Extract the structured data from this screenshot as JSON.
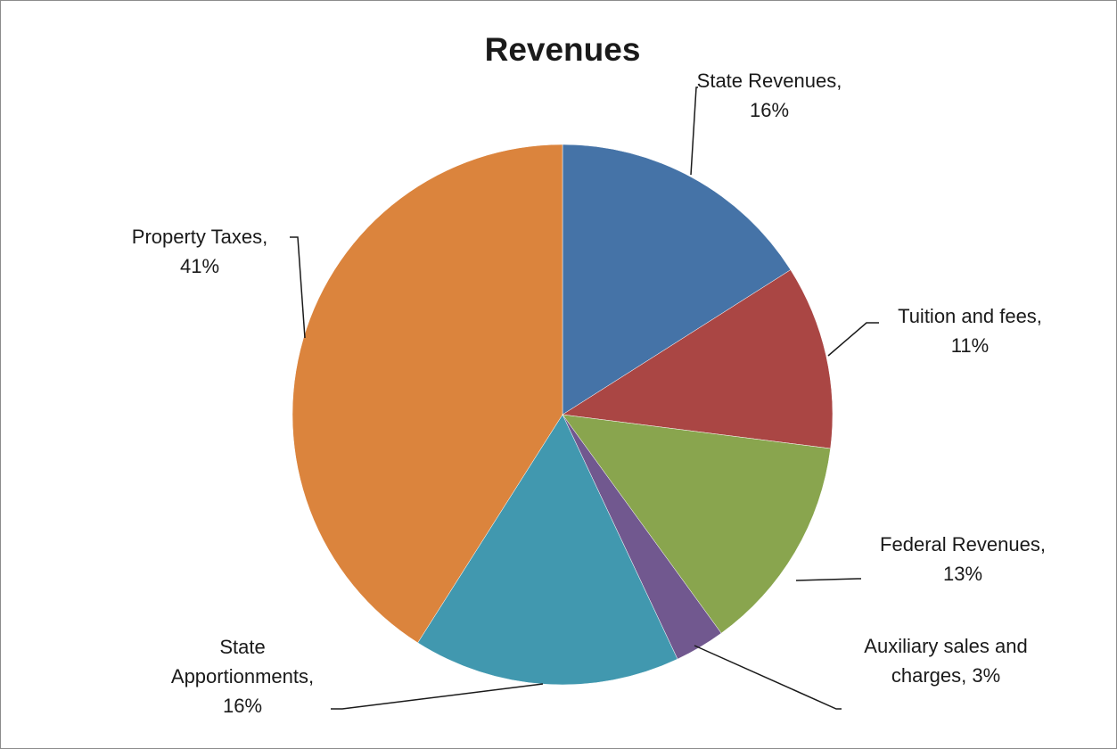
{
  "chart_data": {
    "type": "pie",
    "title": "Revenues",
    "slices": [
      {
        "label_lines": [
          "State Revenues,",
          "16%"
        ],
        "name": "State Revenues",
        "value": 16,
        "color": "#4573A7"
      },
      {
        "label_lines": [
          "Tuition and fees,",
          "11%"
        ],
        "name": "Tuition and fees",
        "value": 11,
        "color": "#AA4644"
      },
      {
        "label_lines": [
          "Federal Revenues,",
          "13%"
        ],
        "name": "Federal Revenues",
        "value": 13,
        "color": "#89A54E"
      },
      {
        "label_lines": [
          "Auxiliary sales and",
          "charges, 3%"
        ],
        "name": "Auxiliary sales and charges",
        "value": 3,
        "color": "#71588F"
      },
      {
        "label_lines": [
          "State",
          "Apportionments,",
          "16%"
        ],
        "name": "State Apportionments",
        "value": 16,
        "color": "#4198AF"
      },
      {
        "label_lines": [
          "Property Taxes,",
          "41%"
        ],
        "name": "Property Taxes",
        "value": 41,
        "color": "#DB843D"
      }
    ],
    "legend": "none",
    "start_angle": "12 o'clock",
    "direction": "clockwise"
  }
}
